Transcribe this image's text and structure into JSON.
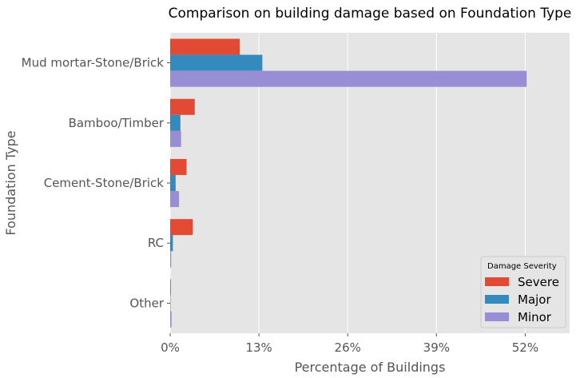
{
  "chart_data": {
    "type": "bar",
    "orientation": "horizontal",
    "title": "Comparison on building damage based on Foundation Type",
    "xlabel": "Percentage of Buildings",
    "ylabel": "Foundation Type",
    "categories": [
      "Mud mortar-Stone/Brick",
      "Bamboo/Timber",
      "Cement-Stone/Brick",
      "RC",
      "Other"
    ],
    "xlim": [
      0,
      58.5
    ],
    "xticks": [
      0,
      13,
      26,
      39,
      52
    ],
    "xtick_labels": [
      "0%",
      "13%",
      "26%",
      "39%",
      "52%"
    ],
    "grid": true,
    "legend": {
      "title": "Damage Severity",
      "position": "bottom-right"
    },
    "series": [
      {
        "name": "Severe",
        "color": "#E24A33",
        "values": [
          10.2,
          3.6,
          2.4,
          3.3,
          0.1
        ]
      },
      {
        "name": "Major",
        "color": "#348ABD",
        "values": [
          13.5,
          1.5,
          0.8,
          0.4,
          0.05
        ]
      },
      {
        "name": "Minor",
        "color": "#988ED5",
        "values": [
          52.2,
          1.6,
          1.3,
          0.15,
          0.2
        ]
      }
    ]
  }
}
